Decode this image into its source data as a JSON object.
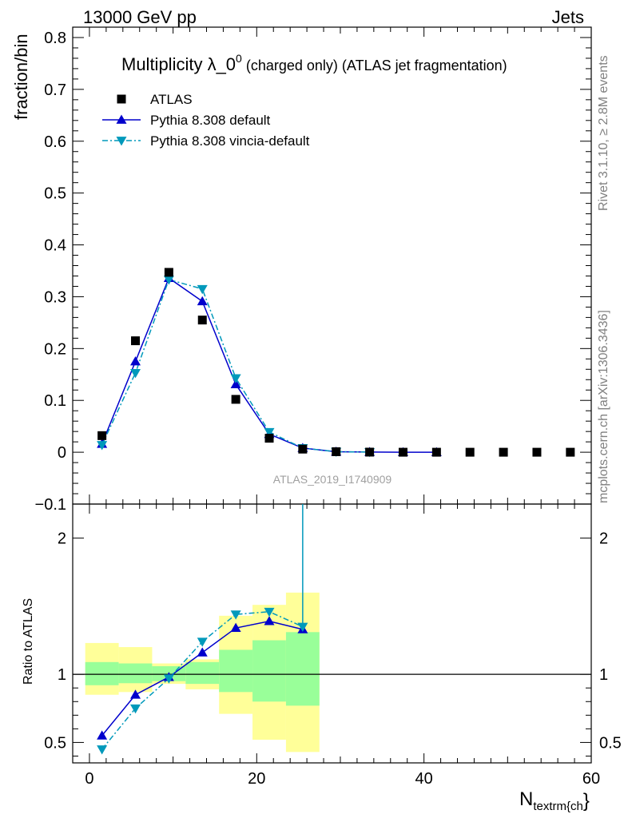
{
  "header": {
    "energy_label": "13000 GeV pp",
    "process_label": "Jets"
  },
  "side": {
    "rivet_label": "Rivet 3.1.10, ≥ 2.8M events",
    "mcplots_label": "mcplots.cern.ch [arXiv:1306.3436]"
  },
  "chart_data": {
    "type": "scatter",
    "title_main": "Multiplicity λ_0",
    "title_sup": "0",
    "title_rest": " (charged only) (ATLAS jet fragmentation)",
    "watermark": "ATLAS_2019_I1740909",
    "xlabel_main": "N",
    "xlabel_sub": "textrm{ch",
    "xlabel_close": "}",
    "ylabel": "fraction/bin",
    "ratio_ylabel": "Ratio to ATLAS",
    "xlim": [
      -2,
      60
    ],
    "ylim": [
      -0.1,
      0.82
    ],
    "ratio_ylim": [
      0.35,
      2.25
    ],
    "x_ticks": [
      0,
      20,
      40,
      60
    ],
    "x_tick_labels": [
      "0",
      "20",
      "40",
      "60"
    ],
    "y_ticks": [
      0,
      0.1,
      0.2,
      0.3,
      0.4,
      0.5,
      0.6,
      0.7,
      0.8
    ],
    "y_tick_labels": [
      "0",
      "0.1",
      "0.2",
      "0.3",
      "0.4",
      "0.5",
      "0.6",
      "0.7",
      "0.8"
    ],
    "y_tick_label_bottom": "−0.1",
    "ratio_ticks": [
      0.5,
      1,
      2
    ],
    "ratio_tick_labels": [
      "0.5",
      "1",
      "2"
    ],
    "legend": [
      {
        "label": "ATLAS",
        "marker": "square",
        "color": "#000000"
      },
      {
        "label": "Pythia 8.308 default",
        "marker": "triangle-up",
        "color": "#0000cc"
      },
      {
        "label": "Pythia 8.308 vincia-default",
        "marker": "triangle-down",
        "color": "#0099bb"
      }
    ],
    "data": {
      "x": [
        1.5,
        5.5,
        9.5,
        13.5,
        17.5,
        21.5,
        25.5,
        29.5,
        33.5,
        37.5,
        41.5,
        45.5,
        49.5,
        53.5,
        57.5
      ],
      "y": [
        0.032,
        0.215,
        0.347,
        0.255,
        0.102,
        0.027,
        0.006,
        0.001,
        0.0002,
        0.0,
        0.0,
        0.0,
        0.0,
        0.0,
        0.0
      ]
    },
    "series": [
      {
        "name": "Pythia 8.308 default",
        "x": [
          1.5,
          5.5,
          9.5,
          13.5,
          17.5,
          21.5,
          25.5,
          29.5,
          33.5,
          37.5,
          41.5
        ],
        "y": [
          0.016,
          0.175,
          0.336,
          0.291,
          0.131,
          0.035,
          0.008,
          0.001,
          0.0003,
          0.0,
          0.0
        ],
        "ratio_x": [
          1.5,
          5.5,
          9.5,
          13.5,
          17.5,
          21.5,
          25.5
        ],
        "ratio": [
          0.55,
          0.85,
          0.98,
          1.16,
          1.34,
          1.39,
          1.33
        ]
      },
      {
        "name": "Pythia 8.308 vincia-default",
        "x": [
          1.5,
          5.5,
          9.5,
          13.5,
          17.5,
          21.5,
          25.5,
          29.5,
          33.5
        ],
        "y": [
          0.014,
          0.153,
          0.333,
          0.315,
          0.143,
          0.039,
          0.008,
          0.001,
          0.0003
        ],
        "ratio_x": [
          1.5,
          5.5,
          9.5,
          13.5,
          17.5,
          21.5,
          25.5
        ],
        "ratio": [
          0.45,
          0.75,
          0.97,
          1.24,
          1.44,
          1.46,
          1.35
        ]
      }
    ],
    "uncertainty_bands": {
      "bins": [
        [
          -0.5,
          3.5
        ],
        [
          3.5,
          7.5
        ],
        [
          7.5,
          11.5
        ],
        [
          11.5,
          15.5
        ],
        [
          15.5,
          19.5
        ],
        [
          19.5,
          23.5
        ],
        [
          23.5,
          27.5
        ]
      ],
      "inner_low": [
        0.92,
        0.935,
        0.95,
        0.93,
        0.87,
        0.8,
        0.77
      ],
      "inner_high": [
        1.09,
        1.08,
        1.06,
        1.09,
        1.18,
        1.25,
        1.31
      ],
      "outer_low": [
        0.85,
        0.87,
        0.93,
        0.89,
        0.71,
        0.52,
        0.43
      ],
      "outer_high": [
        1.23,
        1.2,
        1.08,
        1.11,
        1.43,
        1.51,
        1.6
      ]
    },
    "vincia_ratio_spike": {
      "x": 25.5,
      "from": 1.35,
      "to": 2.25
    }
  }
}
